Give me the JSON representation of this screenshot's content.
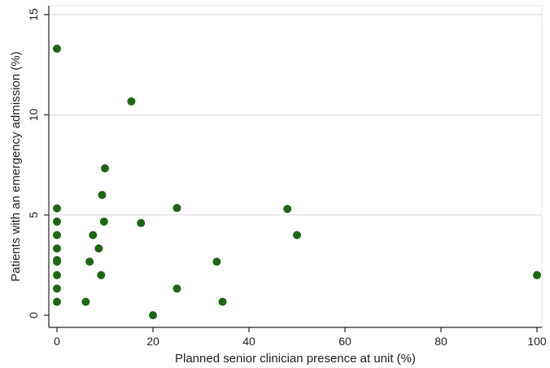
{
  "chart_data": {
    "type": "scatter",
    "title": "",
    "xlabel": "Planned senior clinician presence at unit (%)",
    "ylabel": "Patients with an emergency admission (%)",
    "xlim": [
      0,
      100
    ],
    "ylim": [
      0,
      15
    ],
    "x_ticks": [
      0,
      20,
      40,
      60,
      80,
      100
    ],
    "y_ticks": [
      0,
      5,
      10,
      15
    ],
    "grid": "horizontal",
    "legend": "none",
    "marker_color": "#1e6614",
    "series": [
      {
        "points": [
          {
            "x": 0,
            "y": 13.3
          },
          {
            "x": 0,
            "y": 5.33
          },
          {
            "x": 0,
            "y": 4.67
          },
          {
            "x": 0,
            "y": 4.0
          },
          {
            "x": 0,
            "y": 3.33
          },
          {
            "x": 0,
            "y": 2.75
          },
          {
            "x": 0,
            "y": 2.67
          },
          {
            "x": 0,
            "y": 2.0
          },
          {
            "x": 0,
            "y": 1.33
          },
          {
            "x": 0,
            "y": 0.67
          },
          {
            "x": 6,
            "y": 0.67
          },
          {
            "x": 6.8,
            "y": 2.67
          },
          {
            "x": 7.5,
            "y": 4.0
          },
          {
            "x": 8.7,
            "y": 3.33
          },
          {
            "x": 9.2,
            "y": 2.0
          },
          {
            "x": 9.4,
            "y": 6.0
          },
          {
            "x": 9.8,
            "y": 4.67
          },
          {
            "x": 10.0,
            "y": 7.33
          },
          {
            "x": 15.5,
            "y": 10.67
          },
          {
            "x": 17.5,
            "y": 4.6
          },
          {
            "x": 20.0,
            "y": 0.0
          },
          {
            "x": 25.0,
            "y": 5.35
          },
          {
            "x": 25.0,
            "y": 1.33
          },
          {
            "x": 33.3,
            "y": 2.67
          },
          {
            "x": 34.5,
            "y": 0.67
          },
          {
            "x": 48.0,
            "y": 5.3
          },
          {
            "x": 50.0,
            "y": 4.0
          },
          {
            "x": 100.0,
            "y": 2.0
          }
        ]
      }
    ]
  }
}
